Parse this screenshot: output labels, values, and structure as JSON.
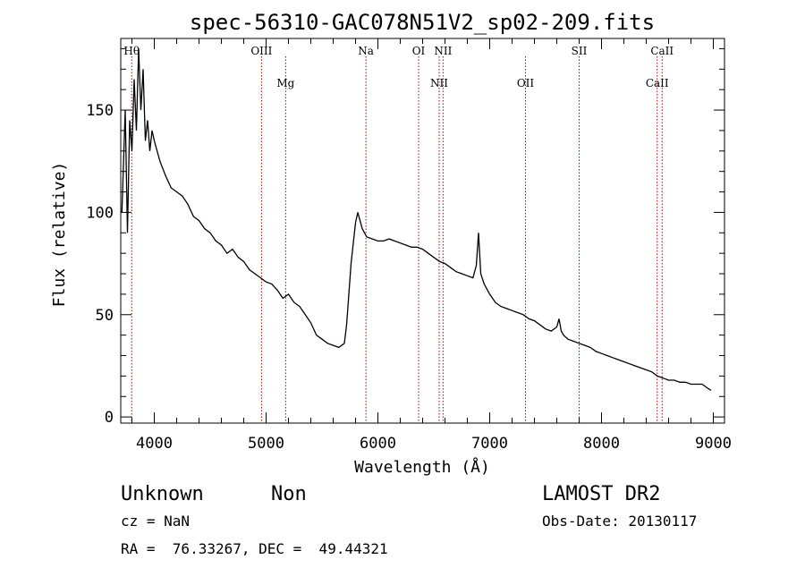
{
  "chart_data": {
    "type": "line",
    "title": "spec-56310-GAC078N51V2_sp02-209.fits",
    "xlabel": "Wavelength (Å)",
    "ylabel": "Flux (relative)",
    "xlim": [
      3700,
      9100
    ],
    "ylim": [
      -3,
      185
    ],
    "xticks": [
      "4000",
      "5000",
      "6000",
      "7000",
      "8000",
      "9000"
    ],
    "yticks": [
      "0",
      "50",
      "100",
      "150"
    ],
    "grid": false,
    "series": [
      {
        "x": [
          3710,
          3740,
          3760,
          3780,
          3800,
          3820,
          3840,
          3860,
          3880,
          3900,
          3920,
          3940,
          3960,
          3980,
          4000,
          4050,
          4100,
          4150,
          4200,
          4250,
          4300,
          4350,
          4400,
          4450,
          4500,
          4550,
          4600,
          4650,
          4700,
          4750,
          4800,
          4850,
          4900,
          4950,
          5000,
          5050,
          5100,
          5150,
          5200,
          5250,
          5300,
          5350,
          5400,
          5450,
          5500,
          5550,
          5600,
          5650,
          5700,
          5720,
          5740,
          5760,
          5780,
          5800,
          5820,
          5840,
          5860,
          5880,
          5900,
          5950,
          6000,
          6050,
          6100,
          6150,
          6200,
          6250,
          6300,
          6350,
          6400,
          6450,
          6500,
          6550,
          6600,
          6650,
          6700,
          6750,
          6800,
          6850,
          6880,
          6900,
          6920,
          6950,
          7000,
          7050,
          7100,
          7150,
          7200,
          7250,
          7300,
          7350,
          7400,
          7450,
          7500,
          7550,
          7600,
          7620,
          7640,
          7660,
          7700,
          7750,
          7800,
          7850,
          7900,
          7950,
          8000,
          8050,
          8100,
          8150,
          8200,
          8250,
          8300,
          8350,
          8400,
          8450,
          8500,
          8550,
          8600,
          8650,
          8700,
          8750,
          8800,
          8850,
          8900,
          8950,
          8980
        ],
        "y": [
          100,
          150,
          90,
          145,
          130,
          165,
          140,
          180,
          150,
          170,
          135,
          145,
          130,
          140,
          135,
          125,
          118,
          112,
          110,
          108,
          104,
          98,
          96,
          92,
          90,
          86,
          84,
          80,
          82,
          78,
          76,
          72,
          70,
          68,
          66,
          65,
          62,
          58,
          60,
          56,
          54,
          50,
          46,
          40,
          38,
          36,
          35,
          34,
          36,
          45,
          60,
          75,
          85,
          95,
          100,
          96,
          92,
          90,
          88,
          87,
          86,
          86,
          87,
          86,
          85,
          84,
          83,
          83,
          82,
          80,
          78,
          76,
          75,
          73,
          71,
          70,
          69,
          68,
          74,
          90,
          70,
          65,
          60,
          56,
          54,
          53,
          52,
          51,
          50,
          48,
          47,
          45,
          43,
          42,
          44,
          48,
          42,
          40,
          38,
          37,
          36,
          35,
          34,
          32,
          31,
          30,
          29,
          28,
          27,
          26,
          25,
          24,
          23,
          22,
          20,
          19,
          18,
          18,
          17,
          17,
          16,
          16,
          16,
          14,
          13
        ]
      }
    ],
    "line_markers": [
      {
        "label": "Hθ",
        "x": 3798,
        "row": 0
      },
      {
        "label": "OIII",
        "x": 4959,
        "row": 0
      },
      {
        "label": "Mg",
        "x": 5175,
        "row": 1
      },
      {
        "label": "Na",
        "x": 5893,
        "row": 0
      },
      {
        "label": "OI",
        "x": 6364,
        "row": 0
      },
      {
        "label": "NII",
        "x": 6583,
        "row": 0
      },
      {
        "label": "NII",
        "x": 6548,
        "row": 1
      },
      {
        "label": "OII",
        "x": 7320,
        "row": 1
      },
      {
        "label": "SII",
        "x": 7800,
        "row": 0
      },
      {
        "label": "CaII",
        "x": 8542,
        "row": 0
      },
      {
        "label": "CaII",
        "x": 8498,
        "row": 1
      }
    ]
  },
  "footer": {
    "object_class": "Unknown",
    "subclass": "Non",
    "survey": "LAMOST DR2",
    "cz": "cz = NaN",
    "obs_date": "Obs-Date: 20130117",
    "coords": "RA =  76.33267, DEC =  49.44321"
  }
}
